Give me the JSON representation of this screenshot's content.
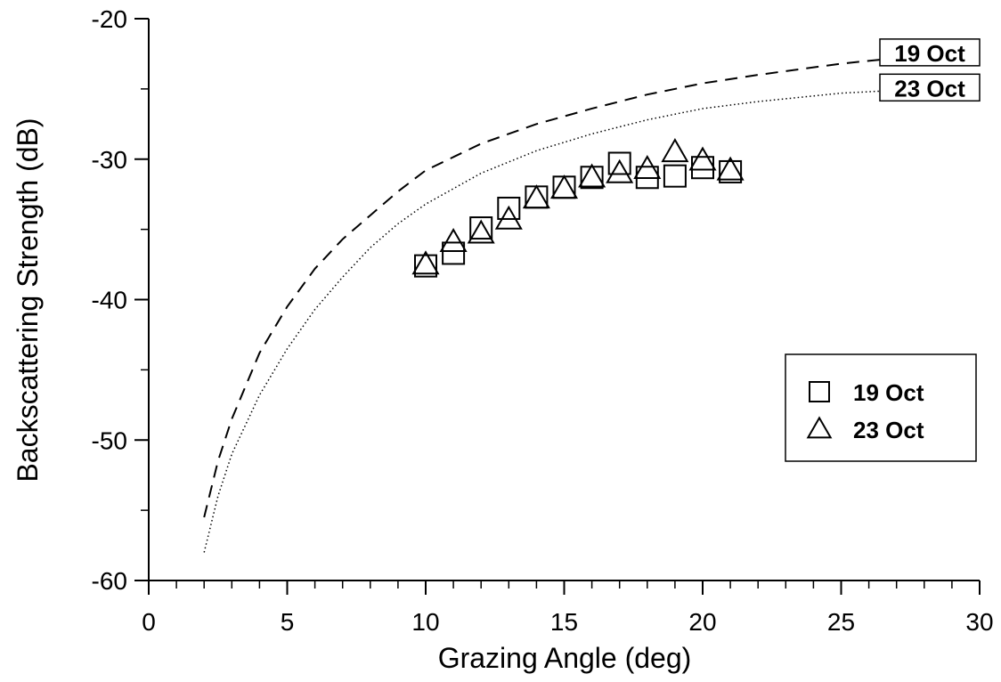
{
  "chart_data": {
    "type": "scatter",
    "x_label": "Grazing Angle (deg)",
    "y_label": "Backscattering Strength (dB)",
    "xlim": [
      0,
      30
    ],
    "xticks": [
      0,
      5,
      10,
      15,
      20,
      25,
      30
    ],
    "xminorticks": [
      1,
      2,
      3,
      4,
      6,
      7,
      8,
      9,
      11,
      12,
      13,
      14,
      16,
      17,
      18,
      19,
      21,
      22,
      23,
      24,
      26,
      27,
      28,
      29
    ],
    "ylim": [
      -60,
      -20
    ],
    "yticks": [
      -60,
      -50,
      -40,
      -30,
      -20
    ],
    "yminorticks": [
      -55,
      -45,
      -35,
      -25
    ],
    "legend": "lower right",
    "series": [
      {
        "name": "19 Oct",
        "kind": "markers",
        "marker": "square",
        "color": "#000000",
        "x": [
          10,
          11,
          12,
          13,
          14,
          15,
          16,
          17,
          18,
          19,
          20,
          21
        ],
        "values": [
          -37.6,
          -36.7,
          -34.9,
          -33.5,
          -32.7,
          -32.0,
          -31.3,
          -30.3,
          -31.3,
          -31.2,
          -30.6,
          -30.9
        ]
      },
      {
        "name": "23 Oct",
        "kind": "markers",
        "marker": "triangle",
        "color": "#000000",
        "x": [
          10,
          11,
          12,
          13,
          14,
          15,
          16,
          17,
          18,
          19,
          20,
          21
        ],
        "values": [
          -37.5,
          -35.9,
          -35.3,
          -34.3,
          -32.8,
          -32.1,
          -31.3,
          -31.0,
          -30.7,
          -29.5,
          -30.1,
          -30.8
        ]
      },
      {
        "name": "19 Oct",
        "kind": "curve",
        "dash": "dashed",
        "color": "#000000",
        "x": [
          2,
          2.5,
          3,
          4,
          5,
          6,
          7,
          8,
          9,
          10,
          12,
          14,
          16,
          18,
          20,
          22,
          25,
          28,
          30
        ],
        "values": [
          -55.5,
          -51.5,
          -48.5,
          -43.8,
          -40.5,
          -37.8,
          -35.7,
          -34.0,
          -32.3,
          -30.8,
          -28.9,
          -27.5,
          -26.4,
          -25.4,
          -24.6,
          -24.0,
          -23.2,
          -22.6,
          -22.4
        ]
      },
      {
        "name": "23 Oct",
        "kind": "curve",
        "dash": "dotted",
        "color": "#000000",
        "x": [
          2,
          2.5,
          3,
          4,
          5,
          6,
          7,
          8,
          9,
          10,
          12,
          14,
          16,
          18,
          20,
          22,
          25,
          28,
          30
        ],
        "values": [
          -58.0,
          -54.0,
          -51.0,
          -46.8,
          -43.5,
          -40.7,
          -38.4,
          -36.3,
          -34.6,
          -33.2,
          -31.0,
          -29.4,
          -28.2,
          -27.2,
          -26.4,
          -25.9,
          -25.3,
          -25.0,
          -24.9
        ]
      }
    ]
  }
}
